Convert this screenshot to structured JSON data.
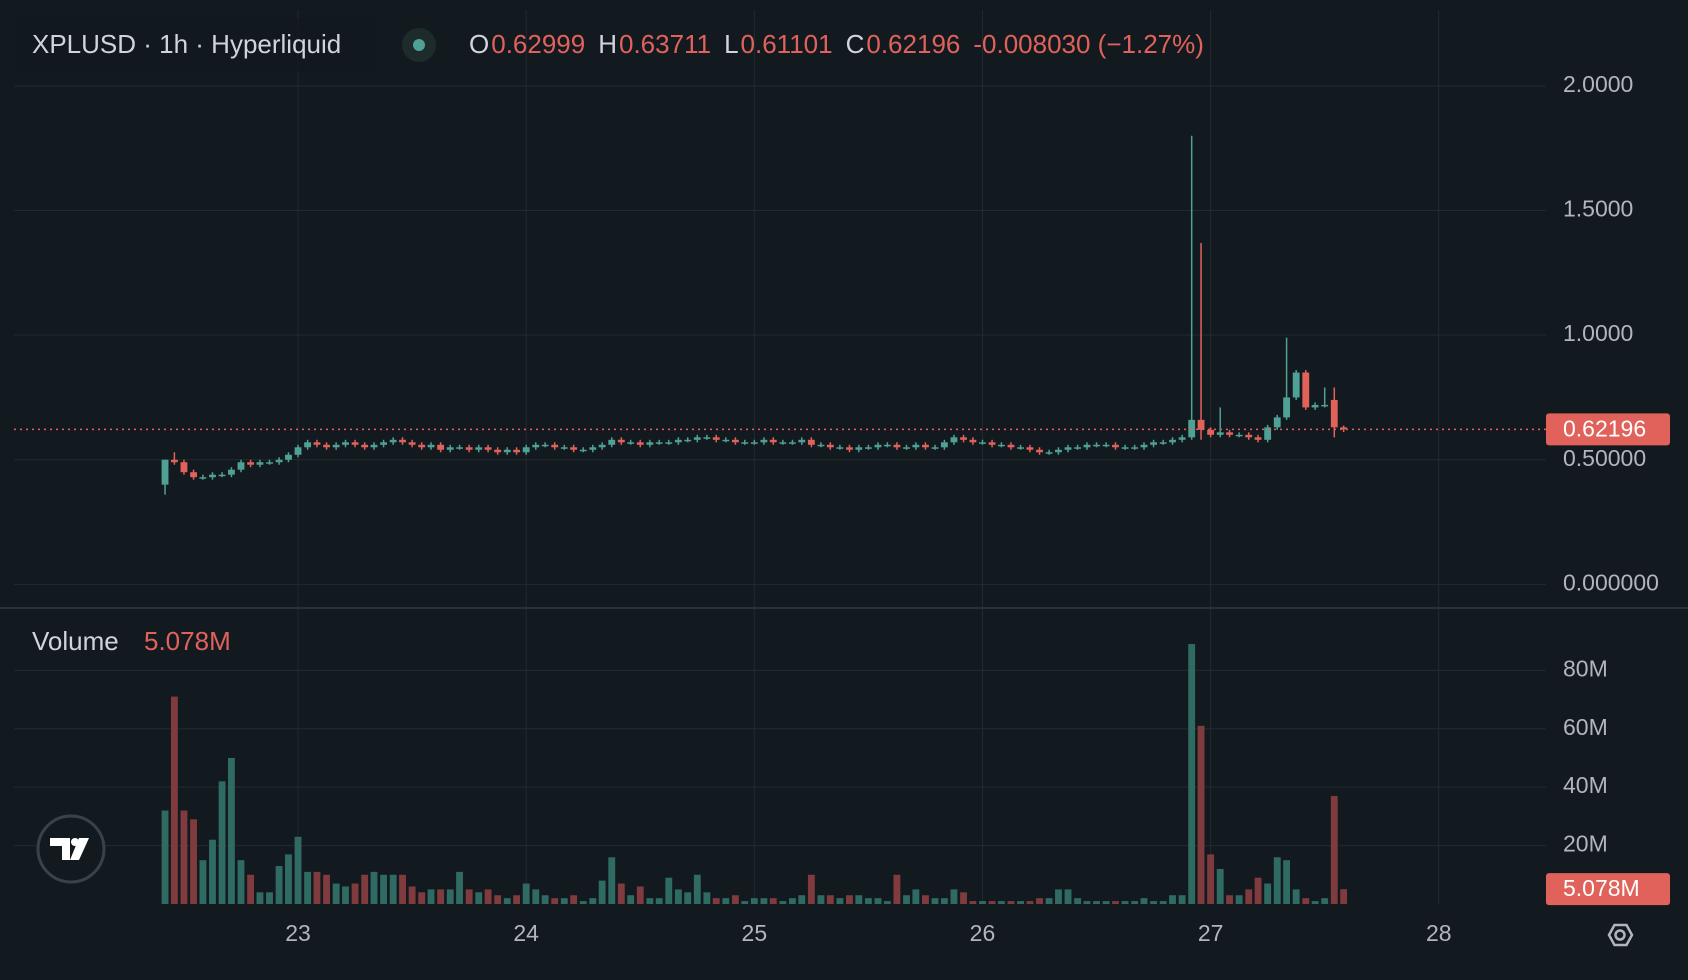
{
  "chart_data": {
    "type": "candlestick",
    "title": "XPLUSD · 1h · Hyperliquid",
    "ohlc_keys": [
      "O",
      "H",
      "L",
      "C"
    ],
    "change_label": "-0.008030 (−1.27%)",
    "up_color": "#4fa195",
    "down_color": "#e0625b",
    "volume_up_color": "#2f6b62",
    "volume_down_color": "#7f3b3e",
    "grid": true,
    "x": [
      22.417,
      22.458,
      22.5,
      22.542,
      22.583,
      22.625,
      22.667,
      22.708,
      22.75,
      22.792,
      22.833,
      22.875,
      22.917,
      22.958,
      23,
      23.042,
      23.083,
      23.125,
      23.167,
      23.208,
      23.25,
      23.292,
      23.333,
      23.375,
      23.417,
      23.458,
      23.5,
      23.542,
      23.583,
      23.625,
      23.667,
      23.708,
      23.75,
      23.792,
      23.833,
      23.875,
      23.917,
      23.958,
      24,
      24.042,
      24.083,
      24.125,
      24.167,
      24.208,
      24.25,
      24.292,
      24.333,
      24.375,
      24.417,
      24.458,
      24.5,
      24.542,
      24.583,
      24.625,
      24.667,
      24.708,
      24.75,
      24.792,
      24.833,
      24.875,
      24.917,
      24.958,
      25,
      25.042,
      25.083,
      25.125,
      25.167,
      25.208,
      25.25,
      25.292,
      25.333,
      25.375,
      25.417,
      25.458,
      25.5,
      25.542,
      25.583,
      25.625,
      25.667,
      25.708,
      25.75,
      25.792,
      25.833,
      25.875,
      25.917,
      25.958,
      26,
      26.042,
      26.083,
      26.125,
      26.167,
      26.208,
      26.25,
      26.292,
      26.333,
      26.375,
      26.417,
      26.458,
      26.5,
      26.542,
      26.583,
      26.625,
      26.667,
      26.708,
      26.75,
      26.792,
      26.833,
      26.875,
      26.917,
      26.958,
      27,
      27.042,
      27.083,
      27.125,
      27.167,
      27.208,
      27.25,
      27.292,
      27.333,
      27.375,
      27.417,
      27.458,
      27.5,
      27.542,
      27.583
    ],
    "open": [
      0.4,
      0.5,
      0.49,
      0.45,
      0.43,
      0.43,
      0.44,
      0.44,
      0.46,
      0.49,
      0.48,
      0.49,
      0.49,
      0.5,
      0.52,
      0.55,
      0.57,
      0.56,
      0.55,
      0.56,
      0.57,
      0.56,
      0.55,
      0.56,
      0.57,
      0.58,
      0.57,
      0.56,
      0.55,
      0.56,
      0.54,
      0.55,
      0.55,
      0.54,
      0.55,
      0.54,
      0.53,
      0.54,
      0.53,
      0.55,
      0.56,
      0.56,
      0.55,
      0.55,
      0.54,
      0.54,
      0.55,
      0.56,
      0.58,
      0.57,
      0.57,
      0.56,
      0.57,
      0.57,
      0.57,
      0.58,
      0.58,
      0.59,
      0.59,
      0.58,
      0.58,
      0.57,
      0.57,
      0.57,
      0.58,
      0.57,
      0.57,
      0.57,
      0.58,
      0.56,
      0.56,
      0.55,
      0.55,
      0.54,
      0.55,
      0.55,
      0.56,
      0.56,
      0.55,
      0.55,
      0.56,
      0.55,
      0.55,
      0.57,
      0.59,
      0.58,
      0.57,
      0.57,
      0.56,
      0.56,
      0.55,
      0.55,
      0.54,
      0.53,
      0.53,
      0.54,
      0.55,
      0.55,
      0.56,
      0.56,
      0.56,
      0.55,
      0.55,
      0.55,
      0.56,
      0.57,
      0.57,
      0.58,
      0.59,
      0.66,
      0.62,
      0.6,
      0.61,
      0.6,
      0.6,
      0.59,
      0.58,
      0.63,
      0.67,
      0.75,
      0.85,
      0.71,
      0.72,
      0.74,
      0.62999
    ],
    "high": [
      0.5,
      0.53,
      0.5,
      0.46,
      0.44,
      0.45,
      0.45,
      0.47,
      0.5,
      0.5,
      0.5,
      0.5,
      0.51,
      0.53,
      0.56,
      0.58,
      0.58,
      0.57,
      0.57,
      0.58,
      0.58,
      0.57,
      0.57,
      0.58,
      0.59,
      0.59,
      0.58,
      0.57,
      0.57,
      0.57,
      0.56,
      0.56,
      0.56,
      0.56,
      0.56,
      0.55,
      0.55,
      0.55,
      0.56,
      0.57,
      0.57,
      0.57,
      0.56,
      0.56,
      0.55,
      0.56,
      0.57,
      0.59,
      0.59,
      0.58,
      0.58,
      0.58,
      0.58,
      0.58,
      0.59,
      0.59,
      0.6,
      0.6,
      0.6,
      0.59,
      0.59,
      0.58,
      0.58,
      0.59,
      0.59,
      0.58,
      0.58,
      0.59,
      0.59,
      0.57,
      0.57,
      0.56,
      0.56,
      0.56,
      0.56,
      0.57,
      0.57,
      0.57,
      0.56,
      0.57,
      0.57,
      0.56,
      0.58,
      0.6,
      0.6,
      0.59,
      0.58,
      0.58,
      0.57,
      0.57,
      0.56,
      0.56,
      0.55,
      0.54,
      0.55,
      0.56,
      0.56,
      0.57,
      0.57,
      0.57,
      0.57,
      0.56,
      0.56,
      0.57,
      0.58,
      0.58,
      0.59,
      0.6,
      1.8,
      1.37,
      0.63,
      0.71,
      0.62,
      0.61,
      0.61,
      0.6,
      0.64,
      0.68,
      0.99,
      0.86,
      0.86,
      0.73,
      0.79,
      0.79,
      0.63711
    ],
    "low": [
      0.36,
      0.48,
      0.44,
      0.42,
      0.42,
      0.42,
      0.43,
      0.43,
      0.45,
      0.47,
      0.47,
      0.48,
      0.48,
      0.49,
      0.51,
      0.54,
      0.55,
      0.54,
      0.54,
      0.55,
      0.55,
      0.54,
      0.54,
      0.55,
      0.56,
      0.56,
      0.55,
      0.54,
      0.54,
      0.53,
      0.53,
      0.54,
      0.53,
      0.53,
      0.53,
      0.52,
      0.52,
      0.52,
      0.52,
      0.54,
      0.55,
      0.54,
      0.54,
      0.53,
      0.53,
      0.53,
      0.54,
      0.55,
      0.56,
      0.56,
      0.55,
      0.55,
      0.56,
      0.56,
      0.56,
      0.57,
      0.57,
      0.58,
      0.57,
      0.57,
      0.56,
      0.56,
      0.56,
      0.56,
      0.56,
      0.56,
      0.56,
      0.56,
      0.55,
      0.55,
      0.54,
      0.54,
      0.53,
      0.53,
      0.54,
      0.54,
      0.55,
      0.54,
      0.54,
      0.54,
      0.54,
      0.54,
      0.54,
      0.56,
      0.57,
      0.56,
      0.56,
      0.55,
      0.55,
      0.54,
      0.54,
      0.53,
      0.52,
      0.52,
      0.52,
      0.53,
      0.54,
      0.54,
      0.55,
      0.55,
      0.54,
      0.54,
      0.54,
      0.54,
      0.55,
      0.56,
      0.56,
      0.57,
      0.58,
      0.58,
      0.59,
      0.59,
      0.59,
      0.59,
      0.58,
      0.57,
      0.57,
      0.62,
      0.66,
      0.74,
      0.7,
      0.7,
      0.71,
      0.59,
      0.61101
    ],
    "close": [
      0.5,
      0.49,
      0.45,
      0.43,
      0.43,
      0.44,
      0.44,
      0.46,
      0.49,
      0.48,
      0.49,
      0.49,
      0.5,
      0.52,
      0.55,
      0.57,
      0.56,
      0.55,
      0.56,
      0.57,
      0.56,
      0.55,
      0.56,
      0.57,
      0.58,
      0.57,
      0.56,
      0.55,
      0.56,
      0.54,
      0.55,
      0.55,
      0.54,
      0.55,
      0.54,
      0.53,
      0.54,
      0.53,
      0.55,
      0.56,
      0.56,
      0.55,
      0.55,
      0.54,
      0.54,
      0.55,
      0.56,
      0.58,
      0.57,
      0.57,
      0.56,
      0.57,
      0.57,
      0.57,
      0.58,
      0.58,
      0.59,
      0.59,
      0.58,
      0.58,
      0.57,
      0.57,
      0.57,
      0.58,
      0.57,
      0.57,
      0.57,
      0.58,
      0.56,
      0.56,
      0.55,
      0.55,
      0.54,
      0.55,
      0.55,
      0.56,
      0.56,
      0.55,
      0.55,
      0.56,
      0.55,
      0.55,
      0.57,
      0.59,
      0.58,
      0.57,
      0.57,
      0.56,
      0.56,
      0.55,
      0.55,
      0.54,
      0.53,
      0.53,
      0.54,
      0.55,
      0.55,
      0.56,
      0.56,
      0.56,
      0.55,
      0.55,
      0.55,
      0.56,
      0.57,
      0.57,
      0.58,
      0.59,
      0.66,
      0.62,
      0.6,
      0.61,
      0.6,
      0.6,
      0.59,
      0.58,
      0.63,
      0.67,
      0.75,
      0.85,
      0.71,
      0.72,
      0.72,
      0.63,
      0.62196
    ],
    "xlim": [
      21.755,
      28.47
    ],
    "xticks": [
      23,
      24,
      25,
      26,
      27,
      28
    ],
    "ylim": [
      -0.095,
      2.345
    ],
    "yticks": [
      {
        "value": 0,
        "label": "0.000000"
      },
      {
        "value": 0.5,
        "label": "0.50000"
      },
      {
        "value": 1,
        "label": "1.0000"
      },
      {
        "value": 1.5,
        "label": "1.5000"
      },
      {
        "value": 2,
        "label": "2.0000"
      }
    ],
    "volume": {
      "name": "Volume",
      "last_value_label": "5.078M",
      "ylim": [
        0,
        98.6
      ],
      "yticks": [
        {
          "value": 20,
          "label": "20M"
        },
        {
          "value": 40,
          "label": "40M"
        },
        {
          "value": 60,
          "label": "60M"
        },
        {
          "value": 80,
          "label": "80M"
        }
      ],
      "values": [
        32,
        71,
        32,
        29,
        15,
        22,
        42,
        50,
        15,
        10,
        4,
        4,
        13,
        17,
        23,
        11,
        11,
        10,
        7,
        6,
        7,
        10,
        11,
        10,
        10,
        10,
        6,
        4,
        5,
        5,
        5,
        11,
        5,
        4,
        5,
        3,
        2,
        3,
        7,
        5,
        3,
        2,
        2,
        3,
        1,
        2,
        8,
        16,
        7,
        3,
        6,
        2,
        2,
        9,
        5,
        4,
        10,
        4,
        2,
        2,
        3,
        1,
        2,
        2,
        2,
        1,
        2,
        3,
        10,
        3,
        3,
        2,
        3,
        3,
        2,
        2,
        1,
        10,
        3,
        5,
        3,
        2,
        2,
        5,
        4,
        1,
        1,
        1,
        1,
        1,
        1,
        1,
        2,
        2,
        5,
        5,
        2,
        1,
        1,
        1,
        1,
        1,
        1,
        2,
        1,
        1,
        3,
        3,
        89,
        61,
        17,
        12,
        3,
        3,
        5,
        9,
        7,
        16,
        15,
        5,
        2,
        1,
        2,
        37,
        5.078
      ]
    }
  }
}
